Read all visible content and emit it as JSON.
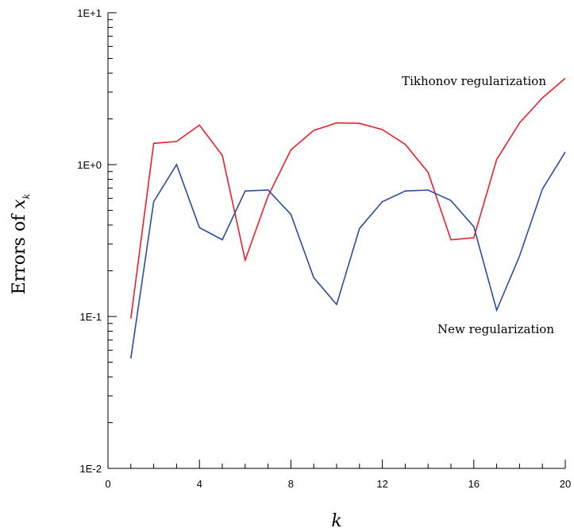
{
  "chart_data": {
    "type": "line",
    "title": "",
    "xlabel": "k",
    "ylabel_prefix": "Errors of ",
    "ylabel_var": "x",
    "ylabel_sub": "k",
    "xlim": [
      0,
      20
    ],
    "ylim": [
      0.01,
      10
    ],
    "yscale": "log",
    "grid": false,
    "legend": "none",
    "x_ticks": [
      {
        "value": 0,
        "label": "0"
      },
      {
        "value": 4,
        "label": "4"
      },
      {
        "value": 8,
        "label": "8"
      },
      {
        "value": 12,
        "label": "12"
      },
      {
        "value": 16,
        "label": "16"
      },
      {
        "value": 20,
        "label": "20"
      }
    ],
    "y_ticks": [
      {
        "value": 0.01,
        "label": "1E-2"
      },
      {
        "value": 0.1,
        "label": "1E-1"
      },
      {
        "value": 1,
        "label": "1E+0"
      },
      {
        "value": 10,
        "label": "1E+1"
      }
    ],
    "x": [
      1,
      2,
      3,
      4,
      5,
      6,
      7,
      8,
      9,
      10,
      11,
      12,
      13,
      14,
      15,
      16,
      17,
      18,
      19,
      20
    ],
    "series": [
      {
        "name": "Tikhonov regularization",
        "color": "#e8202a",
        "values": [
          0.097,
          1.38,
          1.42,
          1.82,
          1.15,
          0.235,
          0.62,
          1.25,
          1.68,
          1.88,
          1.87,
          1.7,
          1.36,
          0.89,
          0.32,
          0.33,
          1.08,
          1.88,
          2.75,
          3.7
        ]
      },
      {
        "name": "New regularization",
        "color": "#2a4d9c",
        "values": [
          0.053,
          0.57,
          1.0,
          0.385,
          0.32,
          0.67,
          0.68,
          0.47,
          0.18,
          0.12,
          0.38,
          0.57,
          0.67,
          0.68,
          0.58,
          0.39,
          0.11,
          0.25,
          0.69,
          1.21
        ]
      }
    ],
    "annotations": [
      {
        "text": "Tikhonov regularization",
        "series": 0
      },
      {
        "text": "New regularization",
        "series": 1
      }
    ]
  }
}
